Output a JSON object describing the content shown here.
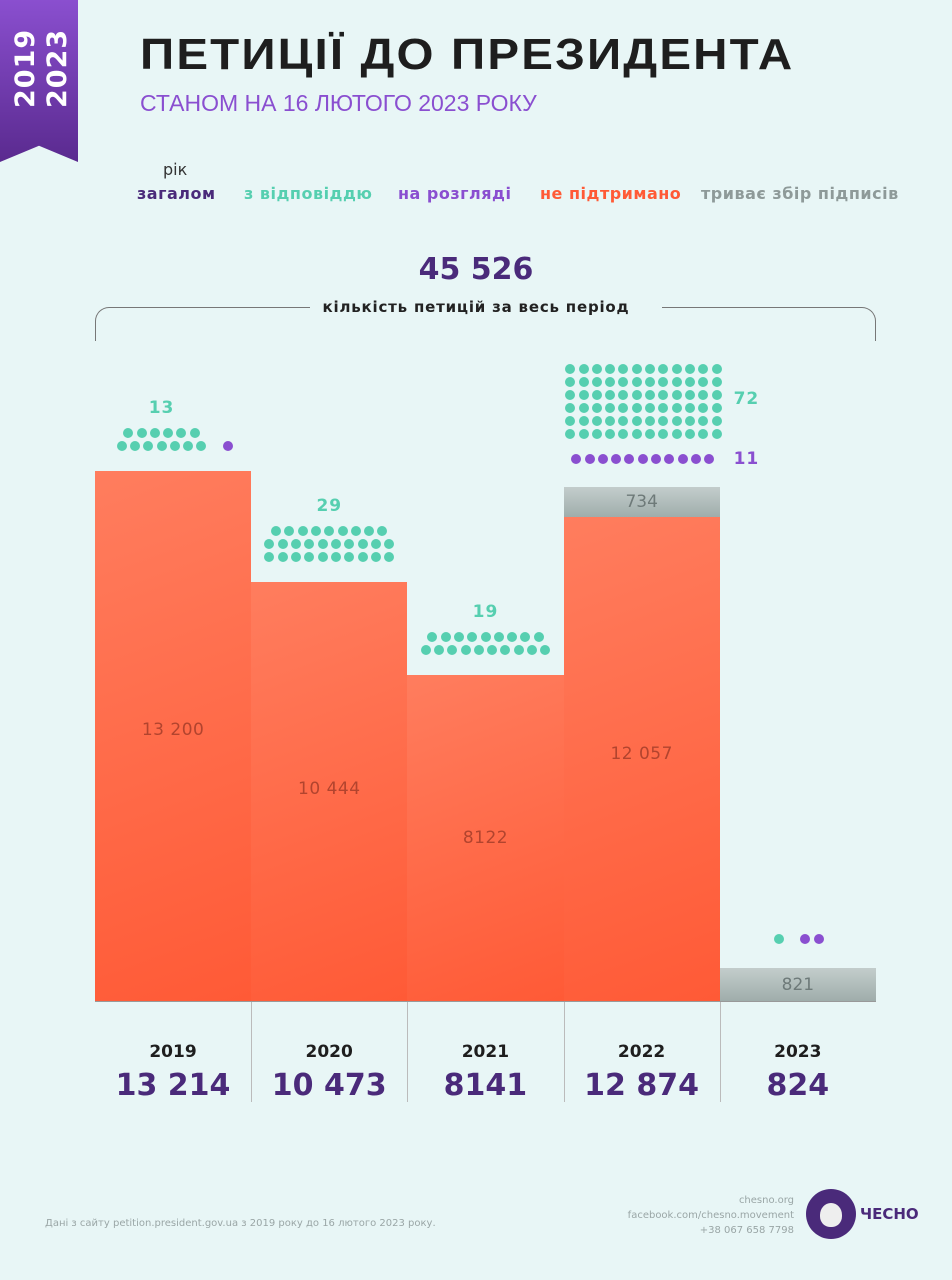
{
  "ribbon": {
    "from": "2019",
    "to": "2023"
  },
  "header": {
    "title": "ПЕТИЦІЇ ДО ПРЕЗИДЕНТА",
    "subtitle": "СТАНОМ НА 16 ЛЮТОГО 2023 РОКУ"
  },
  "legend": {
    "year_label": "рік",
    "items": [
      {
        "label": "загалом",
        "color": "#4a2a7a"
      },
      {
        "label": "з відповіддю",
        "color": "#56cfb0"
      },
      {
        "label": "на розгляді",
        "color": "#8a4fd0"
      },
      {
        "label": "не підтримано",
        "color": "#ff5a36"
      },
      {
        "label": "триває збір підписів",
        "color": "#8e9a99"
      }
    ]
  },
  "total": {
    "value": "45 526",
    "label": "кількість петицій за весь період"
  },
  "chart_data": {
    "type": "bar",
    "title": "ПЕТИЦІЇ ДО ПРЕЗИДЕНТА",
    "categories": [
      "2019",
      "2020",
      "2021",
      "2022",
      "2023"
    ],
    "totals": [
      "13 214",
      "10 473",
      "8141",
      "12 874",
      "824"
    ],
    "series": [
      {
        "name": "не підтримано",
        "values": [
          13200,
          10444,
          8122,
          12057,
          0
        ],
        "labels": [
          "13 200",
          "10 444",
          "8122",
          "12 057",
          ""
        ]
      },
      {
        "name": "триває збір підписів",
        "values": [
          0,
          0,
          0,
          734,
          821
        ],
        "labels": [
          "",
          "",
          "",
          "734",
          "821"
        ]
      },
      {
        "name": "з відповіддю",
        "values": [
          13,
          29,
          19,
          72,
          1
        ],
        "labels": [
          "13",
          "29",
          "19",
          "72",
          ""
        ]
      },
      {
        "name": "на розгляді",
        "values": [
          1,
          0,
          0,
          11,
          2
        ],
        "labels": [
          "",
          "",
          "",
          "11",
          ""
        ]
      }
    ],
    "ylim": [
      0,
      13200
    ]
  },
  "footer": {
    "source": "Дані з сайту petition.president.gov.ua з 2019 року до 16 лютого 2023 року.",
    "contacts": [
      "chesno.org",
      "facebook.com/chesno.movement",
      "+38 067 658 7798"
    ],
    "logo_text": "ЧЕСНО"
  }
}
